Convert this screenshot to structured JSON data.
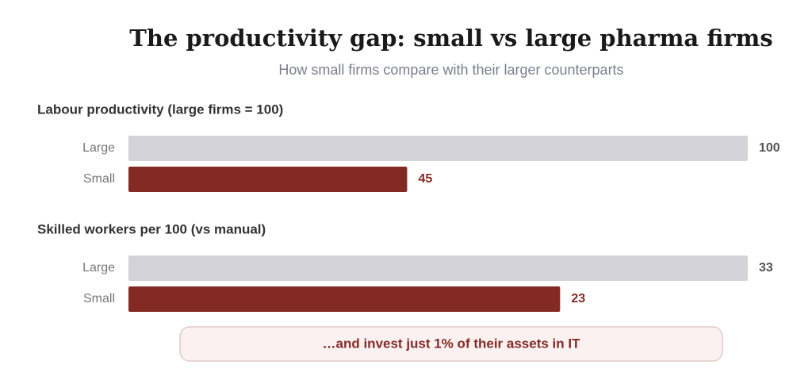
{
  "title": "The productivity gap: small vs large pharma firms",
  "subtitle": "How small firms compare with their larger counterparts",
  "chart_data": [
    {
      "type": "bar",
      "orientation": "horizontal",
      "title": "Labour productivity (large firms = 100)",
      "categories": [
        "Large",
        "Small"
      ],
      "values": [
        100,
        45
      ],
      "colors": [
        "#d4d3d9",
        "#832a25"
      ],
      "xlim": [
        0,
        100
      ]
    },
    {
      "type": "bar",
      "orientation": "horizontal",
      "title": "Skilled workers per 100 (vs manual)",
      "categories": [
        "Large",
        "Small"
      ],
      "values": [
        33,
        23
      ],
      "colors": [
        "#d4d3d9",
        "#832a25"
      ],
      "xlim": [
        0,
        33
      ]
    }
  ],
  "callout": "…and invest just 1% of their assets in IT"
}
